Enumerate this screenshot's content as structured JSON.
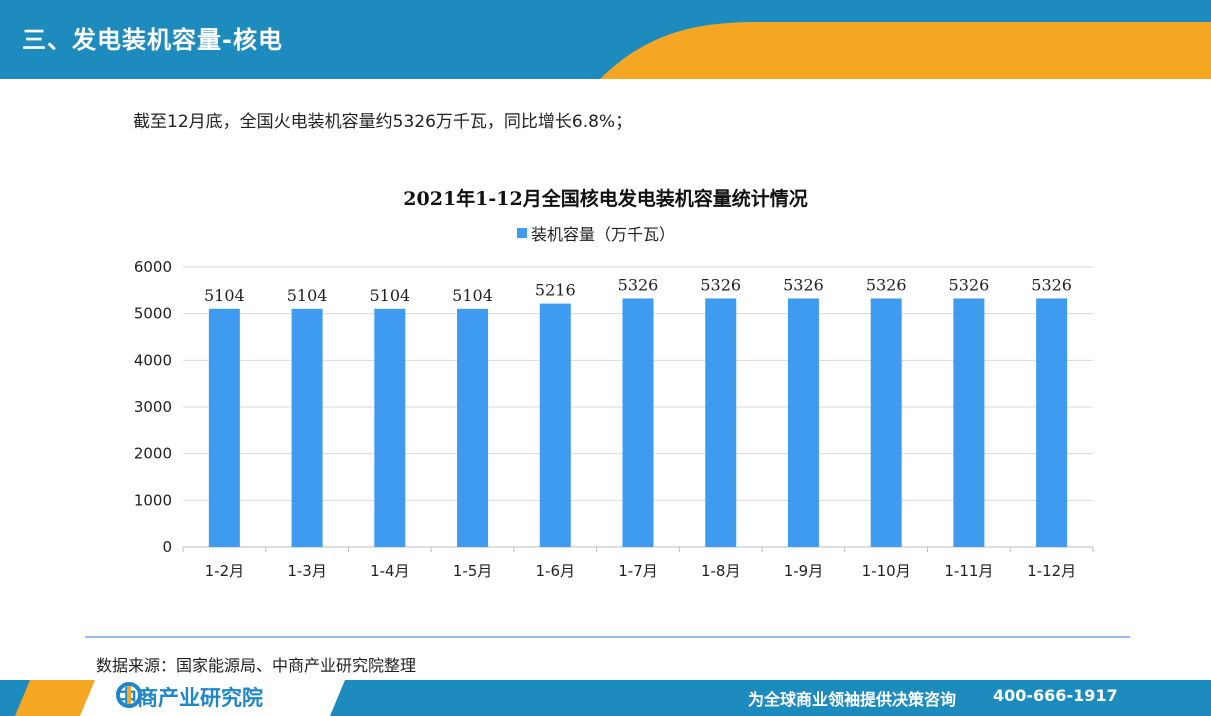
{
  "header": {
    "title": "三、发电装机容量-核电",
    "colors": {
      "primary": "#1e8bbf",
      "accent": "#f5a623"
    }
  },
  "intro_text": "截至12月底，全国火电装机容量约5326万千瓦，同比增长6.8%；",
  "chart_data": {
    "type": "bar",
    "title": "2021年1-12月全国核电发电装机容量统计情况",
    "categories": [
      "1-2月",
      "1-3月",
      "1-4月",
      "1-5月",
      "1-6月",
      "1-7月",
      "1-8月",
      "1-9月",
      "1-10月",
      "1-11月",
      "1-12月"
    ],
    "series": [
      {
        "name": "装机容量（万千瓦）",
        "values": [
          5104,
          5104,
          5104,
          5104,
          5216,
          5326,
          5326,
          5326,
          5326,
          5326,
          5326
        ],
        "color": "#3f9bf0"
      }
    ],
    "ylim": [
      0,
      6000
    ],
    "yticks": [
      0,
      1000,
      2000,
      3000,
      4000,
      5000,
      6000
    ],
    "grid": true,
    "legend_position": "top-center",
    "data_labels": true
  },
  "source_text": "数据来源：国家能源局、中商产业研究院整理",
  "footer": {
    "logo_text": "中商产业研究院",
    "slogan": "为全球商业领袖提供决策咨询",
    "phone": "400-666-1917"
  }
}
